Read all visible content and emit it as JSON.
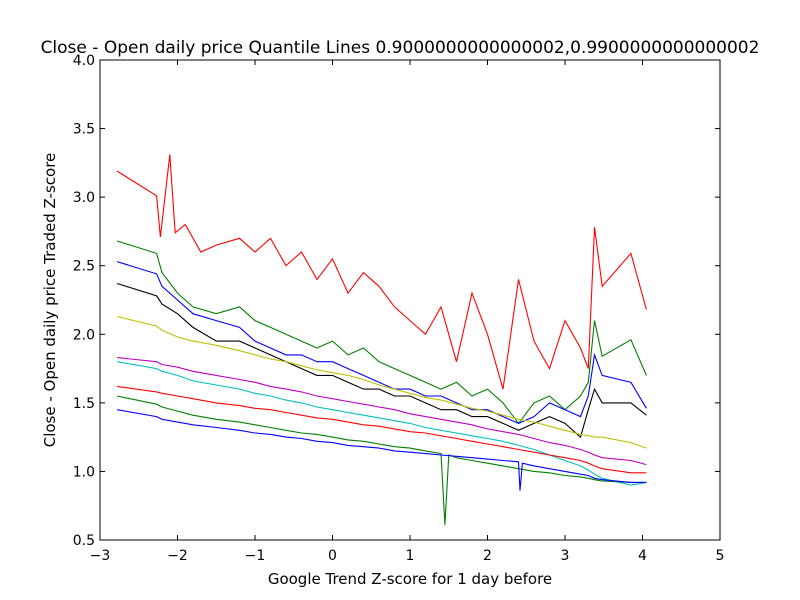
{
  "chart_data": {
    "type": "line",
    "title": "Close - Open daily price Quantile Lines 0.9000000000000002,0.9900000000000002",
    "xlabel": "Google Trend Z-score for 1 day before",
    "ylabel": "Close - Open daily price Traded Z-score",
    "xlim": [
      -3,
      5
    ],
    "ylim": [
      0.5,
      4.0
    ],
    "xticks": [
      "−3",
      "−2",
      "−1",
      "0",
      "1",
      "2",
      "3",
      "4",
      "5"
    ],
    "yticks": [
      "0.5",
      "1.0",
      "1.5",
      "2.0",
      "2.5",
      "3.0",
      "3.5",
      "4.0"
    ],
    "grid": false,
    "legend": "none",
    "series": [
      {
        "color": "#ff0000",
        "x": [
          -2.78,
          -2.27,
          -2.22,
          -2.1,
          -2.03,
          -1.9,
          -1.7,
          -1.5,
          -1.2,
          -1.0,
          -0.8,
          -0.6,
          -0.4,
          -0.2,
          0.0,
          0.2,
          0.4,
          0.6,
          0.8,
          1.0,
          1.2,
          1.4,
          1.6,
          1.8,
          2.0,
          2.2,
          2.4,
          2.6,
          2.8,
          3.0,
          3.2,
          3.3,
          3.38,
          3.48,
          3.85,
          4.05
        ],
        "values": [
          3.19,
          3.01,
          2.71,
          3.31,
          2.74,
          2.8,
          2.6,
          2.65,
          2.7,
          2.6,
          2.7,
          2.5,
          2.6,
          2.4,
          2.55,
          2.3,
          2.45,
          2.35,
          2.2,
          2.1,
          2.0,
          2.2,
          1.8,
          2.3,
          2.0,
          1.6,
          2.4,
          1.95,
          1.75,
          2.1,
          1.9,
          1.75,
          2.78,
          2.35,
          2.59,
          2.18
        ]
      },
      {
        "color": "#008000",
        "x": [
          -2.78,
          -2.27,
          -2.2,
          -2.0,
          -1.8,
          -1.5,
          -1.2,
          -1.0,
          -0.8,
          -0.6,
          -0.4,
          -0.2,
          0.0,
          0.2,
          0.4,
          0.6,
          0.8,
          1.0,
          1.2,
          1.4,
          1.6,
          1.8,
          2.0,
          2.2,
          2.4,
          2.6,
          2.8,
          3.0,
          3.2,
          3.3,
          3.38,
          3.48,
          3.85,
          4.05
        ],
        "values": [
          2.68,
          2.59,
          2.45,
          2.3,
          2.2,
          2.15,
          2.2,
          2.1,
          2.05,
          2.0,
          1.95,
          1.9,
          1.95,
          1.85,
          1.9,
          1.8,
          1.75,
          1.7,
          1.65,
          1.6,
          1.65,
          1.55,
          1.6,
          1.5,
          1.35,
          1.5,
          1.55,
          1.45,
          1.55,
          1.65,
          2.1,
          1.84,
          1.96,
          1.7
        ]
      },
      {
        "color": "#0000ff",
        "x": [
          -2.78,
          -2.27,
          -2.2,
          -2.0,
          -1.8,
          -1.5,
          -1.2,
          -1.0,
          -0.8,
          -0.6,
          -0.4,
          -0.2,
          0.0,
          0.2,
          0.4,
          0.6,
          0.8,
          1.0,
          1.2,
          1.4,
          1.6,
          1.8,
          2.0,
          2.2,
          2.4,
          2.6,
          2.8,
          3.0,
          3.2,
          3.3,
          3.38,
          3.48,
          3.85,
          4.05
        ],
        "values": [
          2.53,
          2.44,
          2.35,
          2.25,
          2.15,
          2.1,
          2.05,
          1.95,
          1.9,
          1.85,
          1.85,
          1.8,
          1.8,
          1.75,
          1.7,
          1.65,
          1.6,
          1.6,
          1.55,
          1.55,
          1.5,
          1.45,
          1.45,
          1.4,
          1.35,
          1.4,
          1.5,
          1.45,
          1.4,
          1.55,
          1.85,
          1.7,
          1.65,
          1.46
        ]
      },
      {
        "color": "#000000",
        "x": [
          -2.78,
          -2.27,
          -2.2,
          -2.0,
          -1.8,
          -1.5,
          -1.2,
          -1.0,
          -0.8,
          -0.6,
          -0.4,
          -0.2,
          0.0,
          0.2,
          0.4,
          0.6,
          0.8,
          1.0,
          1.2,
          1.4,
          1.6,
          1.8,
          2.0,
          2.2,
          2.4,
          2.6,
          2.8,
          3.0,
          3.2,
          3.3,
          3.38,
          3.48,
          3.85,
          4.05
        ],
        "values": [
          2.37,
          2.28,
          2.22,
          2.15,
          2.05,
          1.95,
          1.95,
          1.9,
          1.85,
          1.8,
          1.75,
          1.7,
          1.7,
          1.65,
          1.6,
          1.6,
          1.55,
          1.55,
          1.5,
          1.45,
          1.45,
          1.4,
          1.4,
          1.35,
          1.3,
          1.35,
          1.4,
          1.35,
          1.25,
          1.45,
          1.6,
          1.5,
          1.5,
          1.41
        ]
      },
      {
        "color": "#bfbf00",
        "x": [
          -2.78,
          -2.27,
          -2.2,
          -2.0,
          -1.8,
          -1.5,
          -1.2,
          -1.0,
          -0.8,
          -0.6,
          -0.4,
          -0.2,
          0.0,
          0.2,
          0.4,
          0.6,
          0.8,
          1.0,
          1.2,
          1.4,
          1.6,
          1.8,
          2.0,
          2.2,
          2.4,
          2.6,
          2.8,
          3.0,
          3.2,
          3.3,
          3.38,
          3.48,
          3.85,
          4.05
        ],
        "values": [
          2.13,
          2.06,
          2.03,
          1.98,
          1.95,
          1.92,
          1.88,
          1.85,
          1.82,
          1.8,
          1.77,
          1.74,
          1.72,
          1.7,
          1.67,
          1.63,
          1.6,
          1.57,
          1.54,
          1.52,
          1.49,
          1.46,
          1.44,
          1.41,
          1.38,
          1.36,
          1.33,
          1.3,
          1.27,
          1.26,
          1.25,
          1.25,
          1.21,
          1.17
        ]
      },
      {
        "color": "#bf00bf",
        "x": [
          -2.78,
          -2.27,
          -2.2,
          -2.0,
          -1.8,
          -1.5,
          -1.2,
          -1.0,
          -0.8,
          -0.6,
          -0.4,
          -0.2,
          0.0,
          0.2,
          0.4,
          0.6,
          0.8,
          1.0,
          1.2,
          1.4,
          1.6,
          1.8,
          2.0,
          2.2,
          2.4,
          2.6,
          2.8,
          3.0,
          3.2,
          3.3,
          3.38,
          3.48,
          3.85,
          4.05
        ],
        "values": [
          1.83,
          1.8,
          1.78,
          1.76,
          1.73,
          1.7,
          1.67,
          1.65,
          1.62,
          1.6,
          1.58,
          1.55,
          1.53,
          1.51,
          1.49,
          1.47,
          1.45,
          1.42,
          1.4,
          1.38,
          1.36,
          1.34,
          1.31,
          1.29,
          1.27,
          1.24,
          1.21,
          1.19,
          1.16,
          1.14,
          1.12,
          1.1,
          1.08,
          1.05
        ]
      },
      {
        "color": "#00bfbf",
        "x": [
          -2.78,
          -2.27,
          -2.2,
          -2.0,
          -1.8,
          -1.5,
          -1.2,
          -1.0,
          -0.8,
          -0.6,
          -0.4,
          -0.2,
          0.0,
          0.2,
          0.4,
          0.6,
          0.8,
          1.0,
          1.2,
          1.4,
          1.6,
          1.8,
          2.0,
          2.2,
          2.4,
          2.6,
          2.8,
          3.0,
          3.2,
          3.3,
          3.38,
          3.48,
          3.85,
          4.05
        ],
        "values": [
          1.8,
          1.75,
          1.73,
          1.7,
          1.66,
          1.63,
          1.6,
          1.57,
          1.55,
          1.52,
          1.5,
          1.47,
          1.45,
          1.43,
          1.41,
          1.39,
          1.37,
          1.35,
          1.32,
          1.3,
          1.28,
          1.26,
          1.24,
          1.22,
          1.19,
          1.16,
          1.12,
          1.08,
          1.04,
          1.01,
          0.98,
          0.95,
          0.9,
          0.92
        ]
      },
      {
        "color": "#ff0000",
        "x": [
          -2.78,
          -2.27,
          -2.2,
          -2.0,
          -1.8,
          -1.5,
          -1.2,
          -1.0,
          -0.8,
          -0.6,
          -0.4,
          -0.2,
          0.0,
          0.2,
          0.4,
          0.6,
          0.8,
          1.0,
          1.2,
          1.4,
          1.6,
          1.8,
          2.0,
          2.2,
          2.4,
          2.6,
          2.8,
          3.0,
          3.2,
          3.3,
          3.38,
          3.48,
          3.85,
          4.05
        ],
        "values": [
          1.62,
          1.58,
          1.57,
          1.55,
          1.53,
          1.5,
          1.48,
          1.46,
          1.45,
          1.43,
          1.41,
          1.39,
          1.38,
          1.36,
          1.34,
          1.33,
          1.31,
          1.29,
          1.28,
          1.26,
          1.24,
          1.22,
          1.2,
          1.18,
          1.16,
          1.14,
          1.12,
          1.1,
          1.08,
          1.06,
          1.04,
          1.02,
          0.99,
          0.99
        ]
      },
      {
        "color": "#008000",
        "x": [
          -2.78,
          -2.27,
          -2.2,
          -2.0,
          -1.8,
          -1.5,
          -1.2,
          -1.0,
          -0.8,
          -0.6,
          -0.4,
          -0.2,
          0.0,
          0.2,
          0.4,
          0.6,
          0.8,
          1.0,
          1.2,
          1.4,
          1.45,
          1.5,
          1.6,
          1.8,
          2.0,
          2.2,
          2.4,
          2.6,
          2.8,
          3.0,
          3.2,
          3.3,
          3.38,
          3.48,
          3.85,
          4.05
        ],
        "values": [
          1.55,
          1.49,
          1.47,
          1.44,
          1.41,
          1.38,
          1.36,
          1.34,
          1.32,
          1.3,
          1.28,
          1.27,
          1.25,
          1.23,
          1.22,
          1.2,
          1.18,
          1.17,
          1.15,
          1.13,
          0.61,
          1.12,
          1.1,
          1.08,
          1.06,
          1.04,
          1.02,
          1.0,
          0.99,
          0.97,
          0.96,
          0.95,
          0.94,
          0.93,
          0.92,
          0.92
        ]
      },
      {
        "color": "#0000ff",
        "x": [
          -2.78,
          -2.27,
          -2.2,
          -2.0,
          -1.8,
          -1.5,
          -1.2,
          -1.0,
          -0.8,
          -0.6,
          -0.4,
          -0.2,
          0.0,
          0.2,
          0.4,
          0.6,
          0.8,
          1.0,
          1.2,
          1.4,
          1.6,
          1.8,
          2.0,
          2.2,
          2.4,
          2.42,
          2.45,
          2.6,
          2.8,
          3.0,
          3.2,
          3.3,
          3.38,
          3.48,
          3.85,
          4.05
        ],
        "values": [
          1.45,
          1.4,
          1.38,
          1.36,
          1.34,
          1.32,
          1.3,
          1.28,
          1.27,
          1.25,
          1.24,
          1.22,
          1.21,
          1.19,
          1.18,
          1.17,
          1.15,
          1.14,
          1.13,
          1.12,
          1.11,
          1.1,
          1.09,
          1.08,
          1.07,
          0.86,
          1.06,
          1.04,
          1.02,
          1.0,
          0.98,
          0.97,
          0.95,
          0.94,
          0.92,
          0.92
        ]
      }
    ]
  }
}
